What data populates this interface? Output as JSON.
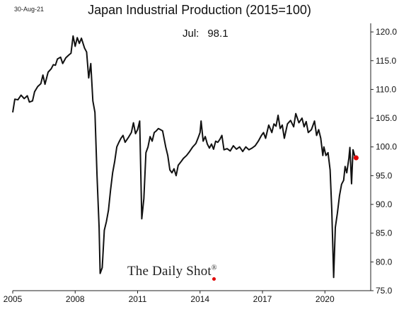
{
  "date_stamp": "30-Aug-21",
  "annotation": {
    "label": "Jul:",
    "value": "98.1"
  },
  "watermark": {
    "text": "The Daily Shot",
    "mark": "®",
    "accent_color": "#e00000"
  },
  "chart_data": {
    "type": "line",
    "title": "Japan Industrial Production (2015=100)",
    "xlabel": "",
    "ylabel": "",
    "xlim": [
      2005,
      2022.2
    ],
    "ylim": [
      75,
      121
    ],
    "x_ticks": [
      2005,
      2008,
      2011,
      2014,
      2017,
      2020
    ],
    "x_tick_labels": [
      "2005",
      "2008",
      "2011",
      "2014",
      "2017",
      "2020"
    ],
    "y_ticks": [
      75,
      80,
      85,
      90,
      95,
      100,
      105,
      110,
      115,
      120
    ],
    "y_tick_labels": [
      "75.0",
      "80.0",
      "85.0",
      "90.0",
      "95.0",
      "100.0",
      "105.0",
      "110.0",
      "115.0",
      "120.0"
    ],
    "y_axis_side": "right",
    "grid": false,
    "line_color": "#111111",
    "marker_color": "#e00000",
    "last_point": {
      "x": 2021.5,
      "y": 98.1
    },
    "series": [
      {
        "points": [
          [
            2005.0,
            106.0
          ],
          [
            2005.1,
            108.3
          ],
          [
            2005.25,
            108.2
          ],
          [
            2005.4,
            109.0
          ],
          [
            2005.55,
            108.4
          ],
          [
            2005.7,
            108.9
          ],
          [
            2005.8,
            107.8
          ],
          [
            2005.95,
            108.0
          ],
          [
            2006.05,
            109.6
          ],
          [
            2006.2,
            110.5
          ],
          [
            2006.35,
            111.0
          ],
          [
            2006.45,
            112.5
          ],
          [
            2006.55,
            110.9
          ],
          [
            2006.7,
            113.0
          ],
          [
            2006.85,
            113.6
          ],
          [
            2006.95,
            114.3
          ],
          [
            2007.05,
            114.2
          ],
          [
            2007.15,
            115.3
          ],
          [
            2007.3,
            115.6
          ],
          [
            2007.4,
            114.5
          ],
          [
            2007.55,
            115.5
          ],
          [
            2007.7,
            116.0
          ],
          [
            2007.8,
            116.3
          ],
          [
            2007.9,
            119.3
          ],
          [
            2008.0,
            117.5
          ],
          [
            2008.1,
            119.0
          ],
          [
            2008.2,
            118.0
          ],
          [
            2008.3,
            118.9
          ],
          [
            2008.45,
            117.2
          ],
          [
            2008.55,
            116.5
          ],
          [
            2008.65,
            112.0
          ],
          [
            2008.75,
            114.5
          ],
          [
            2008.85,
            108.0
          ],
          [
            2008.95,
            106.0
          ],
          [
            2009.05,
            95.0
          ],
          [
            2009.15,
            86.0
          ],
          [
            2009.2,
            78.0
          ],
          [
            2009.3,
            79.0
          ],
          [
            2009.4,
            85.5
          ],
          [
            2009.5,
            87.0
          ],
          [
            2009.6,
            89.0
          ],
          [
            2009.7,
            92.5
          ],
          [
            2009.8,
            95.5
          ],
          [
            2009.9,
            97.5
          ],
          [
            2010.0,
            100.0
          ],
          [
            2010.1,
            100.8
          ],
          [
            2010.2,
            101.5
          ],
          [
            2010.3,
            102.0
          ],
          [
            2010.4,
            100.8
          ],
          [
            2010.55,
            101.6
          ],
          [
            2010.7,
            102.5
          ],
          [
            2010.8,
            104.2
          ],
          [
            2010.9,
            102.3
          ],
          [
            2011.0,
            103.0
          ],
          [
            2011.1,
            104.5
          ],
          [
            2011.2,
            87.5
          ],
          [
            2011.3,
            91.0
          ],
          [
            2011.4,
            99.0
          ],
          [
            2011.5,
            100.0
          ],
          [
            2011.6,
            101.8
          ],
          [
            2011.7,
            101.0
          ],
          [
            2011.8,
            102.5
          ],
          [
            2011.9,
            102.8
          ],
          [
            2012.0,
            103.2
          ],
          [
            2012.1,
            103.0
          ],
          [
            2012.2,
            102.8
          ],
          [
            2012.35,
            100.0
          ],
          [
            2012.45,
            98.5
          ],
          [
            2012.55,
            96.0
          ],
          [
            2012.65,
            95.5
          ],
          [
            2012.75,
            96.2
          ],
          [
            2012.85,
            95.0
          ],
          [
            2012.95,
            96.8
          ],
          [
            2013.1,
            97.5
          ],
          [
            2013.2,
            98.0
          ],
          [
            2013.35,
            98.5
          ],
          [
            2013.5,
            99.2
          ],
          [
            2013.65,
            100.0
          ],
          [
            2013.8,
            100.6
          ],
          [
            2013.9,
            101.5
          ],
          [
            2014.0,
            102.5
          ],
          [
            2014.05,
            104.5
          ],
          [
            2014.15,
            101.0
          ],
          [
            2014.25,
            101.8
          ],
          [
            2014.35,
            100.5
          ],
          [
            2014.45,
            99.8
          ],
          [
            2014.55,
            100.5
          ],
          [
            2014.65,
            99.6
          ],
          [
            2014.75,
            101.0
          ],
          [
            2014.85,
            100.8
          ],
          [
            2014.95,
            101.3
          ],
          [
            2015.05,
            102.0
          ],
          [
            2015.15,
            99.5
          ],
          [
            2015.3,
            99.7
          ],
          [
            2015.45,
            99.3
          ],
          [
            2015.6,
            100.2
          ],
          [
            2015.75,
            99.6
          ],
          [
            2015.9,
            100.0
          ],
          [
            2016.05,
            99.2
          ],
          [
            2016.2,
            100.0
          ],
          [
            2016.35,
            99.5
          ],
          [
            2016.5,
            99.8
          ],
          [
            2016.65,
            100.2
          ],
          [
            2016.8,
            101.0
          ],
          [
            2016.95,
            102.0
          ],
          [
            2017.05,
            102.5
          ],
          [
            2017.15,
            101.5
          ],
          [
            2017.3,
            103.8
          ],
          [
            2017.45,
            102.5
          ],
          [
            2017.55,
            104.0
          ],
          [
            2017.65,
            103.6
          ],
          [
            2017.75,
            105.5
          ],
          [
            2017.85,
            103.2
          ],
          [
            2017.95,
            103.8
          ],
          [
            2018.05,
            101.5
          ],
          [
            2018.2,
            104.0
          ],
          [
            2018.35,
            104.6
          ],
          [
            2018.5,
            103.5
          ],
          [
            2018.6,
            105.8
          ],
          [
            2018.75,
            104.2
          ],
          [
            2018.9,
            105.0
          ],
          [
            2019.0,
            103.5
          ],
          [
            2019.1,
            104.4
          ],
          [
            2019.2,
            102.5
          ],
          [
            2019.35,
            103.0
          ],
          [
            2019.5,
            104.5
          ],
          [
            2019.6,
            102.0
          ],
          [
            2019.7,
            103.0
          ],
          [
            2019.8,
            101.5
          ],
          [
            2019.9,
            98.5
          ],
          [
            2019.95,
            100.0
          ],
          [
            2020.05,
            98.5
          ],
          [
            2020.15,
            99.0
          ],
          [
            2020.25,
            96.0
          ],
          [
            2020.33,
            89.0
          ],
          [
            2020.42,
            77.3
          ],
          [
            2020.5,
            86.0
          ],
          [
            2020.6,
            88.5
          ],
          [
            2020.7,
            91.5
          ],
          [
            2020.8,
            93.5
          ],
          [
            2020.9,
            94.2
          ],
          [
            2020.97,
            96.6
          ],
          [
            2021.05,
            95.5
          ],
          [
            2021.15,
            98.0
          ],
          [
            2021.2,
            99.9
          ],
          [
            2021.28,
            93.6
          ],
          [
            2021.35,
            99.5
          ],
          [
            2021.45,
            98.2
          ],
          [
            2021.5,
            98.1
          ]
        ]
      }
    ]
  }
}
